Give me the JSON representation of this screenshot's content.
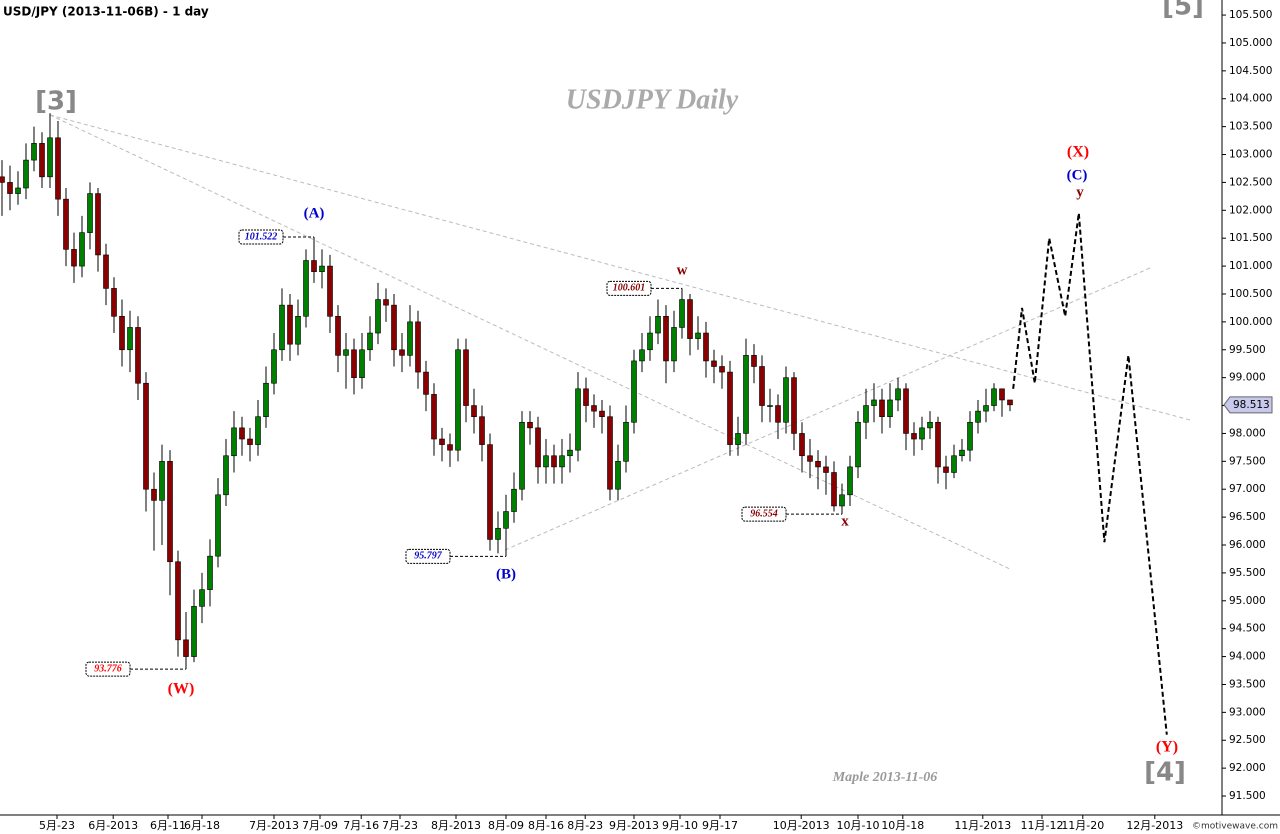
{
  "chart_data": {
    "type": "candlestick",
    "title": "USD/JPY (2013-11-06B) - 1 day",
    "watermark": "USDJPY  Daily",
    "signature": "Maple  2013-11-06",
    "credit": "©motivewave.com",
    "up_color": "#008000",
    "down_color": "#8b0000",
    "open": [
      102.6,
      102.5,
      102.3,
      102.4,
      102.9,
      103.2,
      102.6,
      103.3,
      102.2,
      101.3,
      101.0,
      101.6,
      102.3,
      101.2,
      100.6,
      100.1,
      99.5,
      99.9,
      98.9,
      97.0,
      96.8,
      97.5,
      95.7,
      94.3,
      94.0,
      94.9,
      95.2,
      95.8,
      96.9,
      97.6,
      98.1,
      97.9,
      97.8,
      98.3,
      98.9,
      99.5,
      100.3,
      99.6,
      100.1,
      101.1,
      100.9,
      101.0,
      100.1,
      99.4,
      99.5,
      99.0,
      99.5,
      99.8,
      100.4,
      100.3,
      99.5,
      99.4,
      100.0,
      99.1,
      98.7,
      97.9,
      97.8,
      97.7,
      99.5,
      98.5,
      98.3,
      97.8,
      96.1,
      96.3,
      96.6,
      97.0,
      98.2,
      98.1,
      97.4,
      97.6,
      97.4,
      97.6,
      97.7,
      98.8,
      98.5,
      98.4,
      98.3,
      97.0,
      97.5,
      98.2,
      99.3,
      99.5,
      99.8,
      100.1,
      99.3,
      99.9,
      100.4,
      99.7,
      99.8,
      99.3,
      99.2,
      99.1,
      97.8,
      98.0,
      99.4,
      99.2,
      98.5,
      98.5,
      98.2,
      99.0,
      98.0,
      97.6,
      97.5,
      97.4,
      97.3,
      96.7,
      96.9,
      97.4,
      98.2,
      98.5,
      98.6,
      98.3,
      98.6,
      98.8,
      98.0,
      97.9,
      98.1,
      98.2,
      97.4,
      97.3,
      97.6,
      97.7,
      98.2,
      98.4,
      98.5,
      98.8,
      98.6
    ],
    "high": [
      102.9,
      102.8,
      102.7,
      103.2,
      103.5,
      103.4,
      103.74,
      103.6,
      102.4,
      101.6,
      101.9,
      102.5,
      102.4,
      101.4,
      100.8,
      100.4,
      100.2,
      100.1,
      99.1,
      97.3,
      97.8,
      97.7,
      95.9,
      94.8,
      95.2,
      95.5,
      96.1,
      97.2,
      97.9,
      98.4,
      98.3,
      98.1,
      98.6,
      99.2,
      99.8,
      100.6,
      100.5,
      100.4,
      101.3,
      101.522,
      101.3,
      101.2,
      100.3,
      99.8,
      99.7,
      99.8,
      100.1,
      100.7,
      100.6,
      100.5,
      99.8,
      100.3,
      100.2,
      99.3,
      98.9,
      98.1,
      98.0,
      99.7,
      99.7,
      98.8,
      98.5,
      98.0,
      96.6,
      96.9,
      97.3,
      98.4,
      98.4,
      98.3,
      97.9,
      97.8,
      97.9,
      98.0,
      99.1,
      99.0,
      98.7,
      98.6,
      98.5,
      97.8,
      98.5,
      99.5,
      99.8,
      100.1,
      100.4,
      100.3,
      100.2,
      100.601,
      100.5,
      100.1,
      100.0,
      99.5,
      99.4,
      99.3,
      98.3,
      99.7,
      99.6,
      99.4,
      98.8,
      98.7,
      99.2,
      99.1,
      98.2,
      97.9,
      97.7,
      97.6,
      97.5,
      97.1,
      97.6,
      98.4,
      98.8,
      98.9,
      98.8,
      98.9,
      99.0,
      98.9,
      98.2,
      98.3,
      98.4,
      98.3,
      97.6,
      97.8,
      97.9,
      98.4,
      98.6,
      98.8,
      98.9,
      98.8,
      98.6
    ],
    "low": [
      101.9,
      102.0,
      102.1,
      102.2,
      102.7,
      102.4,
      102.4,
      101.9,
      101.0,
      100.7,
      100.8,
      101.3,
      100.9,
      100.3,
      99.8,
      99.2,
      99.1,
      98.6,
      96.6,
      95.9,
      96.0,
      95.1,
      94.0,
      93.776,
      93.9,
      94.6,
      94.9,
      95.6,
      96.7,
      97.3,
      97.6,
      97.5,
      97.6,
      98.1,
      98.7,
      99.3,
      99.3,
      99.4,
      99.9,
      100.7,
      100.6,
      99.8,
      99.1,
      98.8,
      98.7,
      98.8,
      99.3,
      99.6,
      100.0,
      99.2,
      99.1,
      99.2,
      98.8,
      98.4,
      97.6,
      97.5,
      97.4,
      97.5,
      98.2,
      98.0,
      97.5,
      95.9,
      95.85,
      95.797,
      96.4,
      96.8,
      97.8,
      97.1,
      97.1,
      97.1,
      97.1,
      97.3,
      97.5,
      98.2,
      98.1,
      98.0,
      96.8,
      96.8,
      97.3,
      98.0,
      99.1,
      99.3,
      99.6,
      98.9,
      99.1,
      99.7,
      99.4,
      99.5,
      99.0,
      98.9,
      98.8,
      97.6,
      97.6,
      97.8,
      98.9,
      98.2,
      98.2,
      97.9,
      98.0,
      97.7,
      97.3,
      97.2,
      97.0,
      96.9,
      96.6,
      96.554,
      96.7,
      97.2,
      97.9,
      98.2,
      98.0,
      98.1,
      98.4,
      97.7,
      97.6,
      97.7,
      97.9,
      97.1,
      97.0,
      97.2,
      97.5,
      97.5,
      98.0,
      98.2,
      98.4,
      98.3,
      98.4
    ],
    "close": [
      102.5,
      102.3,
      102.4,
      102.9,
      103.2,
      102.6,
      103.3,
      102.2,
      101.3,
      101.0,
      101.6,
      102.3,
      101.2,
      100.6,
      100.1,
      99.5,
      99.9,
      98.9,
      97.0,
      96.8,
      97.5,
      95.7,
      94.3,
      94.0,
      94.9,
      95.2,
      95.8,
      96.9,
      97.6,
      98.1,
      97.9,
      97.8,
      98.3,
      98.9,
      99.5,
      100.3,
      99.6,
      100.1,
      101.1,
      100.9,
      101.0,
      100.1,
      99.4,
      99.5,
      99.0,
      99.5,
      99.8,
      100.4,
      100.3,
      99.5,
      99.4,
      100.0,
      99.1,
      98.7,
      97.9,
      97.8,
      97.7,
      99.5,
      98.5,
      98.3,
      97.8,
      96.1,
      96.3,
      96.6,
      97.0,
      98.2,
      98.1,
      97.4,
      97.6,
      97.4,
      97.6,
      97.7,
      98.8,
      98.5,
      98.4,
      98.3,
      97.0,
      97.5,
      98.2,
      99.3,
      99.5,
      99.8,
      100.1,
      99.3,
      99.9,
      100.4,
      99.7,
      99.8,
      99.3,
      99.2,
      99.1,
      97.8,
      98.0,
      99.4,
      99.2,
      98.5,
      98.5,
      98.2,
      99.0,
      98.0,
      97.6,
      97.5,
      97.4,
      97.3,
      96.7,
      96.9,
      97.4,
      98.2,
      98.5,
      98.6,
      98.3,
      98.6,
      98.8,
      98.0,
      97.9,
      98.1,
      98.2,
      97.4,
      97.3,
      97.6,
      97.7,
      98.2,
      98.4,
      98.5,
      98.8,
      98.6,
      98.513
    ],
    "last_price": 98.513,
    "price_labels": [
      93.776,
      101.522,
      95.797,
      100.601,
      96.554
    ],
    "projection": {
      "x": [
        126.4,
        127.5,
        129.1,
        130.9,
        132.9,
        134.6,
        137.8,
        140.8,
        145.6
      ],
      "values": [
        98.8,
        100.25,
        98.9,
        101.5,
        100.1,
        101.95,
        96.05,
        99.4,
        92.6
      ]
    },
    "wave_labels": [
      {
        "text": "[3]",
        "color": "#888888"
      },
      {
        "text": "(A)",
        "color": "#0000cc"
      },
      {
        "text": "(B)",
        "color": "#0000cc"
      },
      {
        "text": "w",
        "color": "#8b0000"
      },
      {
        "text": "x",
        "color": "#8b0000"
      },
      {
        "text": "(W)",
        "color": "#ff0000"
      },
      {
        "text": "(X)",
        "color": "#ff0000"
      },
      {
        "text": "(C)",
        "color": "#0000cc"
      },
      {
        "text": "y",
        "color": "#8b0000"
      },
      {
        "text": "(Y)",
        "color": "#ff0000"
      },
      {
        "text": "[4]",
        "color": "#888888"
      },
      {
        "text": "[5]",
        "color": "#888888"
      }
    ],
    "xlim": [
      -0.25,
      152.5
    ],
    "ylim": [
      91.16,
      105.77
    ],
    "xticks": [
      {
        "value": 6.875,
        "label": "5月-23"
      },
      {
        "value": 13.9,
        "label": "6月-2013"
      },
      {
        "value": 20.75,
        "label": "6月-11"
      },
      {
        "value": 25,
        "label": "6月-18"
      },
      {
        "value": 34,
        "label": "7月-2013"
      },
      {
        "value": 39.75,
        "label": "7月-09"
      },
      {
        "value": 44.9,
        "label": "7月-16"
      },
      {
        "value": 49.75,
        "label": "7月-23"
      },
      {
        "value": 56.75,
        "label": "8月-2013"
      },
      {
        "value": 63,
        "label": "8月-09"
      },
      {
        "value": 68,
        "label": "8月-16"
      },
      {
        "value": 72.9,
        "label": "8月-23"
      },
      {
        "value": 79,
        "label": "9月-2013"
      },
      {
        "value": 84.75,
        "label": "9月-10"
      },
      {
        "value": 89.75,
        "label": "9月-17"
      },
      {
        "value": 99.9,
        "label": "10月-2013"
      },
      {
        "value": 107,
        "label": "10月-10"
      },
      {
        "value": 112.6,
        "label": "10月-18"
      },
      {
        "value": 122.6,
        "label": "11月-2013"
      },
      {
        "value": 130,
        "label": "11月-12"
      },
      {
        "value": 135.1,
        "label": "11月-20"
      },
      {
        "value": 144.1,
        "label": "12月-2013"
      }
    ],
    "yticks": [
      {
        "value": 91.5,
        "label": "91.500"
      },
      {
        "value": 92,
        "label": "92.000"
      },
      {
        "value": 92.5,
        "label": "92.500"
      },
      {
        "value": 93,
        "label": "93.000"
      },
      {
        "value": 93.5,
        "label": "93.500"
      },
      {
        "value": 94,
        "label": "94.000"
      },
      {
        "value": 94.5,
        "label": "94.500"
      },
      {
        "value": 95,
        "label": "95.000"
      },
      {
        "value": 95.5,
        "label": "95.500"
      },
      {
        "value": 96,
        "label": "96.000"
      },
      {
        "value": 96.5,
        "label": "96.500"
      },
      {
        "value": 97,
        "label": "97.000"
      },
      {
        "value": 97.5,
        "label": "97.500"
      },
      {
        "value": 98,
        "label": "98.000"
      },
      {
        "value": 98.5,
        "label": "98.500"
      },
      {
        "value": 99,
        "label": "99.000"
      },
      {
        "value": 99.5,
        "label": "99.500"
      },
      {
        "value": 100,
        "label": "100.000"
      },
      {
        "value": 100.5,
        "label": "100.500"
      },
      {
        "value": 101,
        "label": "101.000"
      },
      {
        "value": 101.5,
        "label": "101.500"
      },
      {
        "value": 102,
        "label": "102.000"
      },
      {
        "value": 102.5,
        "label": "102.500"
      },
      {
        "value": 103,
        "label": "103.000"
      },
      {
        "value": 103.5,
        "label": "103.500"
      },
      {
        "value": 104,
        "label": "104.000"
      },
      {
        "value": 104.5,
        "label": "104.500"
      },
      {
        "value": 105,
        "label": "105.000"
      },
      {
        "value": 105.5,
        "label": "105.500"
      }
    ]
  }
}
